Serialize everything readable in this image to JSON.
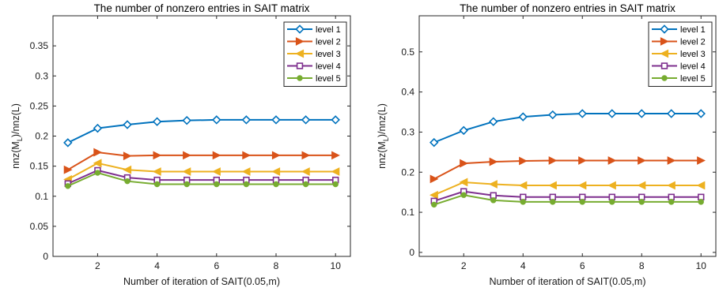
{
  "chart_data": [
    {
      "type": "line",
      "title": "The number of nonzero entries in SAIT matrix",
      "xlabel": "Number of iteration of SAIT(0.05,m)",
      "ylabel": "nnz(M_L)/nnz(L)",
      "ylabel_main": "nnz(M",
      "ylabel_sub": "L",
      "ylabel_tail": ")/nnz(L)",
      "xlim": [
        0.5,
        10.5
      ],
      "ylim": [
        0,
        0.4
      ],
      "xticks": [
        2,
        4,
        6,
        8,
        10
      ],
      "yticks": [
        0,
        0.05,
        0.1,
        0.15,
        0.2,
        0.25,
        0.3,
        0.35
      ],
      "ytick_labels": [
        "0",
        "0.05",
        "0.1",
        "0.15",
        "0.2",
        "0.25",
        "0.3",
        "0.35"
      ],
      "legend_position": "top-right",
      "x": [
        1,
        2,
        3,
        4,
        5,
        6,
        7,
        8,
        9,
        10
      ],
      "series": [
        {
          "name": "level 1",
          "color": "#0072BD",
          "marker": "diamond",
          "values": [
            0.189,
            0.213,
            0.219,
            0.224,
            0.226,
            0.227,
            0.227,
            0.227,
            0.227,
            0.227
          ]
        },
        {
          "name": "level 2",
          "color": "#D95319",
          "marker": "triangle-right",
          "values": [
            0.144,
            0.173,
            0.167,
            0.168,
            0.168,
            0.168,
            0.168,
            0.168,
            0.168,
            0.168
          ]
        },
        {
          "name": "level 3",
          "color": "#EDB120",
          "marker": "triangle-left",
          "values": [
            0.128,
            0.155,
            0.144,
            0.141,
            0.141,
            0.141,
            0.141,
            0.141,
            0.141,
            0.141
          ]
        },
        {
          "name": "level 4",
          "color": "#7E2F8E",
          "marker": "square",
          "values": [
            0.121,
            0.143,
            0.131,
            0.127,
            0.127,
            0.127,
            0.127,
            0.127,
            0.127,
            0.127
          ]
        },
        {
          "name": "level 5",
          "color": "#77AC30",
          "marker": "circle",
          "values": [
            0.117,
            0.139,
            0.125,
            0.12,
            0.12,
            0.12,
            0.12,
            0.12,
            0.12,
            0.12
          ]
        }
      ]
    },
    {
      "type": "line",
      "title": "The number of nonzero entries in SAIT matrix",
      "xlabel": "Number of iteration of SAIT(0.05,m)",
      "ylabel": "nnz(M_L)/nnz(L)",
      "ylabel_main": "nnz(M",
      "ylabel_sub": "L",
      "ylabel_tail": ")/nnz(L)",
      "xlim": [
        0.5,
        10.5
      ],
      "ylim": [
        -0.01,
        0.59
      ],
      "xticks": [
        2,
        4,
        6,
        8,
        10
      ],
      "yticks": [
        0,
        0.1,
        0.2,
        0.3,
        0.4,
        0.5
      ],
      "ytick_labels": [
        "0",
        "0.1",
        "0.2",
        "0.3",
        "0.4",
        "0.5"
      ],
      "legend_position": "top-right",
      "x": [
        1,
        2,
        3,
        4,
        5,
        6,
        7,
        8,
        9,
        10
      ],
      "series": [
        {
          "name": "level 1",
          "color": "#0072BD",
          "marker": "diamond",
          "values": [
            0.274,
            0.304,
            0.326,
            0.338,
            0.343,
            0.346,
            0.346,
            0.346,
            0.346,
            0.346
          ]
        },
        {
          "name": "level 2",
          "color": "#D95319",
          "marker": "triangle-right",
          "values": [
            0.183,
            0.222,
            0.226,
            0.228,
            0.229,
            0.229,
            0.229,
            0.229,
            0.229,
            0.229
          ]
        },
        {
          "name": "level 3",
          "color": "#EDB120",
          "marker": "triangle-left",
          "values": [
            0.143,
            0.175,
            0.17,
            0.167,
            0.167,
            0.167,
            0.167,
            0.167,
            0.167,
            0.167
          ]
        },
        {
          "name": "level 4",
          "color": "#7E2F8E",
          "marker": "square",
          "values": [
            0.128,
            0.152,
            0.142,
            0.138,
            0.138,
            0.138,
            0.138,
            0.138,
            0.138,
            0.138
          ]
        },
        {
          "name": "level 5",
          "color": "#77AC30",
          "marker": "circle",
          "values": [
            0.119,
            0.143,
            0.13,
            0.126,
            0.126,
            0.126,
            0.126,
            0.126,
            0.126,
            0.126
          ]
        }
      ]
    }
  ]
}
